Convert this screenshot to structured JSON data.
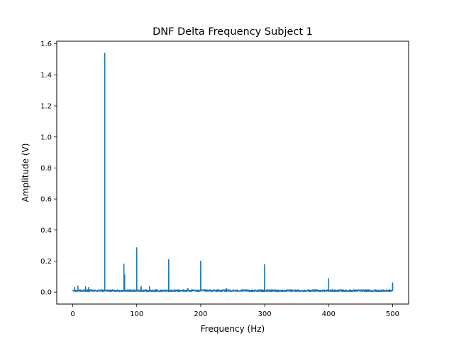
{
  "chart_data": {
    "type": "line",
    "title": "DNF Delta Frequency Subject 1",
    "xlabel": "Frequency (Hz)",
    "ylabel": "Amplitude (V)",
    "xlim": [
      -25,
      525
    ],
    "ylim": [
      -0.077,
      1.617
    ],
    "xticks": [
      0,
      100,
      200,
      300,
      400,
      500
    ],
    "xtick_labels": [
      "0",
      "100",
      "200",
      "300",
      "400",
      "500"
    ],
    "yticks": [
      0.0,
      0.2,
      0.4,
      0.6,
      0.8,
      1.0,
      1.2,
      1.4,
      1.6
    ],
    "ytick_labels": [
      "0.0",
      "0.2",
      "0.4",
      "0.6",
      "0.8",
      "1.0",
      "1.2",
      "1.4",
      "1.6"
    ],
    "grid": false,
    "legend": "none",
    "color": "#1f77b4",
    "noise_floor": 0.01,
    "peaks": [
      {
        "x": 3,
        "y": 0.03
      },
      {
        "x": 8,
        "y": 0.04
      },
      {
        "x": 20,
        "y": 0.035
      },
      {
        "x": 25,
        "y": 0.03
      },
      {
        "x": 50,
        "y": 1.54
      },
      {
        "x": 80,
        "y": 0.18
      },
      {
        "x": 81,
        "y": 0.11
      },
      {
        "x": 100,
        "y": 0.285
      },
      {
        "x": 107,
        "y": 0.035
      },
      {
        "x": 120,
        "y": 0.035
      },
      {
        "x": 150,
        "y": 0.21
      },
      {
        "x": 180,
        "y": 0.025
      },
      {
        "x": 200,
        "y": 0.2
      },
      {
        "x": 240,
        "y": 0.025
      },
      {
        "x": 300,
        "y": 0.177
      },
      {
        "x": 400,
        "y": 0.087
      },
      {
        "x": 500,
        "y": 0.06
      }
    ]
  }
}
